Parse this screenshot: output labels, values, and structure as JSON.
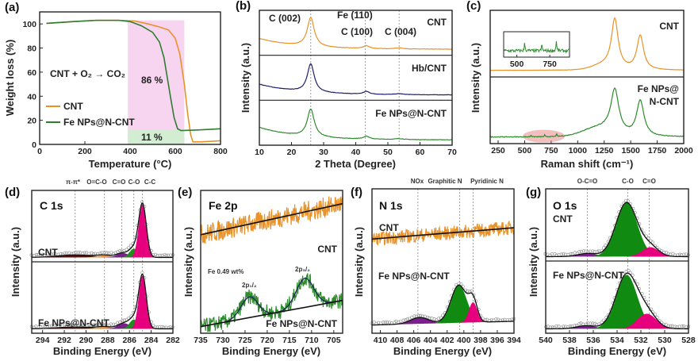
{
  "chart_data": [
    {
      "panel_label": "(a)",
      "type": "line",
      "xlabel": "Temperature (°C)",
      "ylabel": "Weight loss (%)",
      "xlim": [
        0,
        800
      ],
      "ylim": [
        0,
        110
      ],
      "xticks": [
        0,
        200,
        400,
        600,
        800
      ],
      "yticks": [
        0,
        20,
        40,
        60,
        80,
        100
      ],
      "regions": [
        {
          "x": [
            390,
            640
          ],
          "y": [
            0,
            103
          ],
          "color": "#F7D4EF"
        },
        {
          "x": [
            390,
            640
          ],
          "y": [
            0,
            12
          ],
          "color": "#D3EDD3"
        }
      ],
      "series": [
        {
          "name": "CNT",
          "color": "#E8922A",
          "points": [
            [
              30,
              100.5
            ],
            [
              150,
              102
            ],
            [
              250,
              103
            ],
            [
              350,
              103
            ],
            [
              420,
              102.5
            ],
            [
              480,
              100
            ],
            [
              530,
              97.5
            ],
            [
              570,
              95
            ],
            [
              600,
              88
            ],
            [
              620,
              75
            ],
            [
              640,
              50
            ],
            [
              655,
              25
            ],
            [
              668,
              8
            ],
            [
              678,
              2
            ],
            [
              720,
              2.2
            ],
            [
              800,
              3
            ]
          ]
        },
        {
          "name": "Fe NPs@N-CNT",
          "color": "#2E7D32",
          "points": [
            [
              30,
              100.5
            ],
            [
              150,
              102
            ],
            [
              250,
              103
            ],
            [
              350,
              103
            ],
            [
              400,
              102
            ],
            [
              450,
              98.5
            ],
            [
              500,
              93
            ],
            [
              530,
              85
            ],
            [
              550,
              72
            ],
            [
              565,
              55
            ],
            [
              580,
              38
            ],
            [
              595,
              22
            ],
            [
              610,
              13
            ],
            [
              625,
              11.5
            ],
            [
              700,
              12
            ],
            [
              800,
              13
            ]
          ]
        }
      ],
      "annotations": [
        {
          "text": "CNT + O₂ → CO₂",
          "color": "#B0178A"
        },
        {
          "text": "86 %",
          "color": "#222222"
        },
        {
          "text": "11 %",
          "color": "#222222"
        }
      ],
      "legend_position": "bottom-left"
    },
    {
      "panel_label": "(b)",
      "type": "line",
      "xlabel": "2 Theta (Degree)",
      "ylabel": "Intensity (a.u.)",
      "xlim": [
        10,
        70
      ],
      "xticks": [
        10,
        20,
        30,
        40,
        50,
        60,
        70
      ],
      "vlines": [
        26,
        43,
        53.5
      ],
      "annotations": [
        {
          "text": "C (002)"
        },
        {
          "text": "Fe (110)"
        },
        {
          "text": "C (100)"
        },
        {
          "text": "C (004)"
        }
      ],
      "subpanels": [
        {
          "label": "CNT",
          "color": "#E8922A",
          "data_line": true,
          "noise": 0.01,
          "baseline": {
            "level": 0.08,
            "amp": 0.3,
            "tau": 12
          },
          "peaks": [
            {
              "c": 26,
              "w": 1.3,
              "h": 0.82,
              "shape": "lorentz"
            },
            {
              "c": 43.3,
              "w": 1.1,
              "h": 0.08,
              "shape": "lorentz"
            },
            {
              "c": 53.5,
              "w": 1.5,
              "h": 0.03,
              "shape": "lorentz"
            }
          ]
        },
        {
          "label": "Hb/CNT",
          "color": "#1F1F6E",
          "data_line": true,
          "noise": 0.01,
          "baseline": {
            "level": 0.06,
            "amp": 0.3,
            "tau": 12
          },
          "peaks": [
            {
              "c": 26,
              "w": 1.3,
              "h": 0.8,
              "shape": "lorentz"
            },
            {
              "c": 43.3,
              "w": 1.1,
              "h": 0.08,
              "shape": "lorentz"
            },
            {
              "c": 53.5,
              "w": 1.5,
              "h": 0.025,
              "shape": "lorentz"
            }
          ]
        },
        {
          "label": "Fe NPs@N-CNT",
          "color": "#2E8B2E",
          "data_line": true,
          "noise": 0.012,
          "baseline": {
            "level": 0.06,
            "amp": 0.35,
            "tau": 12
          },
          "peaks": [
            {
              "c": 26,
              "w": 1.3,
              "h": 0.78,
              "shape": "lorentz"
            },
            {
              "c": 43.3,
              "w": 1.1,
              "h": 0.08,
              "shape": "lorentz"
            },
            {
              "c": 53.5,
              "w": 1.5,
              "h": 0.025,
              "shape": "lorentz"
            }
          ]
        }
      ]
    },
    {
      "panel_label": "(c)",
      "type": "line",
      "xlabel": "Raman shift (cm⁻¹)",
      "ylabel": "Intensity (a.u.)",
      "xlim": [
        175,
        2000
      ],
      "xticks": [
        250,
        500,
        750,
        1000,
        1250,
        1500,
        1750,
        2000
      ],
      "subpanels": [
        {
          "label": "CNT",
          "color": "#E8922A",
          "data_line": true,
          "noise": 0.004,
          "baseline": {
            "level": 0.06
          },
          "peaks": [
            {
              "c": 1350,
              "w": 38,
              "h": 0.85,
              "shape": "lorentz"
            },
            {
              "c": 1590,
              "w": 38,
              "h": 0.6,
              "shape": "lorentz"
            },
            {
              "c": 1250,
              "w": 110,
              "h": 0.08,
              "shape": "gauss"
            }
          ]
        },
        {
          "label_lines": [
            "Fe NPs@",
            "N-CNT"
          ],
          "color": "#2E8B2E",
          "data_line": true,
          "noise": 0.012,
          "baseline": {
            "level": 0.06
          },
          "peaks": [
            {
              "c": 1350,
              "w": 45,
              "h": 0.75,
              "shape": "lorentz"
            },
            {
              "c": 1590,
              "w": 42,
              "h": 0.62,
              "shape": "lorentz"
            },
            {
              "c": 1200,
              "w": 150,
              "h": 0.15,
              "shape": "gauss"
            },
            {
              "c": 560,
              "w": 3,
              "h": 0.05,
              "shape": "lorentz"
            },
            {
              "c": 690,
              "w": 3,
              "h": 0.04,
              "shape": "lorentz"
            },
            {
              "c": 800,
              "w": 3,
              "h": 0.06,
              "shape": "lorentz"
            }
          ],
          "highlight_region": {
            "x": [
              480,
              880
            ],
            "color": "#E88A8A"
          },
          "inset": {
            "xlim": [
              400,
              900
            ],
            "xticks": [
              500,
              750
            ]
          }
        }
      ]
    },
    {
      "panel_label": "(d)",
      "type": "line",
      "title": "C 1s",
      "xlabel": "Binding Energy (eV)",
      "ylabel": "Intensity (a.u.)",
      "xlim": [
        295,
        282
      ],
      "xticks": [
        294,
        292,
        290,
        288,
        286,
        284,
        282
      ],
      "vlines": [
        291,
        288.3,
        286.7,
        285.6,
        284.8
      ],
      "vline_labels": [
        "π-π*",
        "O=C-O",
        "C=O",
        "C-O",
        "C-C"
      ],
      "subpanels": [
        {
          "label": "CNT",
          "color": "#E8922A",
          "fill": true,
          "envelope": true,
          "circles": true,
          "baseline": {
            "level": 0.02
          },
          "peaks": [
            {
              "c": 291,
              "w": 1.6,
              "h": 0.04,
              "color": "#5A0F0F"
            },
            {
              "c": 288.3,
              "w": 0.7,
              "h": 0.03,
              "color": "#E8922A"
            },
            {
              "c": 286.6,
              "w": 0.55,
              "h": 0.07,
              "color": "#7B1F8C"
            },
            {
              "c": 285.6,
              "w": 0.4,
              "h": 0.14,
              "color": "#1E8C1E"
            },
            {
              "c": 284.8,
              "w": 0.35,
              "h": 0.86,
              "color": "#E6007E"
            }
          ]
        },
        {
          "label": "Fe NPs@N-CNT",
          "color": "#2E8B2E",
          "fill": true,
          "envelope": true,
          "circles": true,
          "baseline": {
            "level": 0.02
          },
          "peaks": [
            {
              "c": 291,
              "w": 1.6,
              "h": 0.03,
              "color": "#5A0F0F"
            },
            {
              "c": 288.3,
              "w": 0.7,
              "h": 0.03,
              "color": "#E8922A"
            },
            {
              "c": 286.5,
              "w": 0.55,
              "h": 0.09,
              "color": "#7B1F8C"
            },
            {
              "c": 285.6,
              "w": 0.4,
              "h": 0.15,
              "color": "#1E8C1E"
            },
            {
              "c": 284.8,
              "w": 0.35,
              "h": 0.86,
              "color": "#E6007E"
            }
          ]
        }
      ]
    },
    {
      "panel_label": "(e)",
      "type": "line",
      "title": "Fe 2p",
      "xlabel": "Binding Energy (eV)",
      "ylabel": "Intensity (a.u.)",
      "xlim": [
        735,
        703
      ],
      "xticks": [
        735,
        730,
        725,
        720,
        715,
        710,
        705
      ],
      "annotations": [
        {
          "text": "Fe 0.49 wt%"
        },
        {
          "text": "2p₁/₂"
        },
        {
          "text": "2p₃/₂"
        }
      ],
      "subpanels": [
        {
          "label": "CNT",
          "color": "#E8922A",
          "data_line": true,
          "baseline_line": true,
          "noise": 0.3,
          "baseline": {
            "level": 0.45,
            "slope": 0.45
          },
          "peaks": []
        },
        {
          "label": "Fe NPs@N-CNT",
          "color": "#2E8B2E",
          "data_line": true,
          "baseline_line": true,
          "fit_lines": true,
          "noise": 0.22,
          "baseline": {
            "level": 0.05,
            "slope": 0.38
          },
          "peaks": [
            {
              "c": 724,
              "w": 1.9,
              "h": 0.3
            },
            {
              "c": 711.5,
              "w": 2.0,
              "h": 0.42
            }
          ]
        }
      ]
    },
    {
      "panel_label": "(f)",
      "type": "line",
      "title": "N 1s",
      "xlabel": "Binding Energy (eV)",
      "ylabel": "Intensity (a.u.)",
      "xlim": [
        411,
        394
      ],
      "xticks": [
        410,
        408,
        406,
        404,
        402,
        400,
        398,
        396,
        394
      ],
      "vlines": [
        405.5,
        400.5,
        398.9
      ],
      "vline_labels": [
        "NOx",
        "Graphitic N",
        "Pyridinic N"
      ],
      "subpanels": [
        {
          "label": "CNT",
          "color": "#E8922A",
          "data_line": true,
          "baseline_line": true,
          "noise": 0.22,
          "baseline": {
            "level": 0.3,
            "slope": 0.18
          },
          "peaks": []
        },
        {
          "label": "Fe NPs@N-CNT",
          "color": "#2E8B2E",
          "fill": true,
          "envelope": true,
          "circles": true,
          "baseline": {
            "level": 0.08,
            "slope": 0.06
          },
          "peaks": [
            {
              "c": 405.3,
              "w": 1.1,
              "h": 0.1,
              "color": "#7B1F8C"
            },
            {
              "c": 400.6,
              "w": 0.95,
              "h": 0.6,
              "color": "#118A11"
            },
            {
              "c": 398.9,
              "w": 0.5,
              "h": 0.32,
              "color": "#E6007E"
            }
          ]
        }
      ]
    },
    {
      "panel_label": "(g)",
      "type": "line",
      "title": "O 1s",
      "xlabel": "Binding Energy (eV)",
      "ylabel": "Intensity (a.u.)",
      "xlim": [
        540,
        528
      ],
      "xticks": [
        540,
        538,
        536,
        534,
        532,
        530,
        528
      ],
      "vlines": [
        536.5,
        533.1,
        531.3
      ],
      "vline_labels": [
        "O-C=O",
        "C-O",
        "C=O"
      ],
      "subpanels": [
        {
          "label": "CNT",
          "color": "#E8922A",
          "fill": true,
          "envelope": true,
          "circles": true,
          "baseline": {
            "level": 0.02
          },
          "peaks": [
            {
              "c": 536.5,
              "w": 0.8,
              "h": 0.05,
              "color": "#7B1F8C"
            },
            {
              "c": 533.2,
              "w": 0.9,
              "h": 0.86,
              "color": "#118A11"
            },
            {
              "c": 531.2,
              "w": 0.7,
              "h": 0.15,
              "color": "#E6007E"
            }
          ]
        },
        {
          "label": "Fe NPs@N-CNT",
          "color": "#2E8B2E",
          "fill": true,
          "envelope": true,
          "circles": true,
          "baseline": {
            "level": 0.02
          },
          "peaks": [
            {
              "c": 536.6,
              "w": 0.8,
              "h": 0.05,
              "color": "#7B1F8C"
            },
            {
              "c": 533.2,
              "w": 0.9,
              "h": 0.86,
              "color": "#118A11"
            },
            {
              "c": 531.5,
              "w": 0.8,
              "h": 0.24,
              "color": "#E6007E"
            }
          ]
        }
      ]
    }
  ]
}
